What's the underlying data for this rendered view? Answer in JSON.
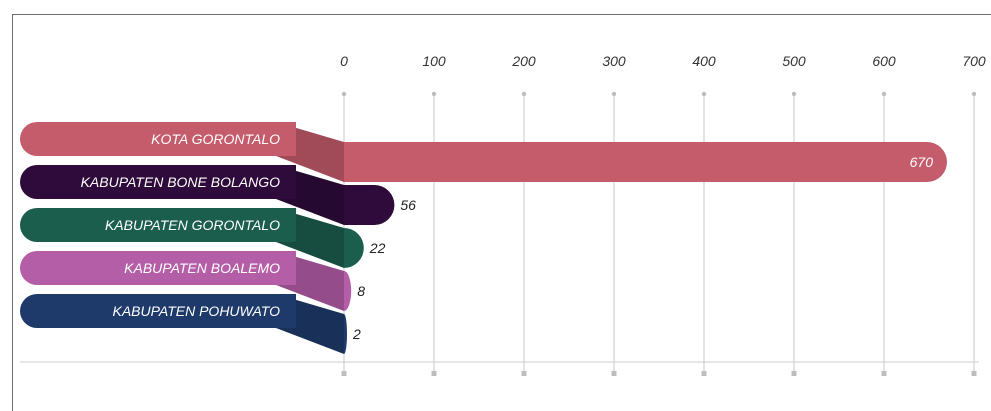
{
  "chart_data": {
    "type": "bar",
    "orientation": "horizontal",
    "categories": [
      "KOTA GORONTALO",
      "KABUPATEN BONE BOLANGO",
      "KABUPATEN GORONTALO",
      "KABUPATEN BOALEMO",
      "KABUPATEN POHUWATO"
    ],
    "values": [
      670,
      56,
      22,
      8,
      2
    ],
    "value_labels": [
      "670",
      "56",
      "22",
      "8",
      "2"
    ],
    "colors": [
      "#c45c6b",
      "#2e0b3b",
      "#1b5e4e",
      "#b55ea8",
      "#1e3a6b"
    ],
    "xlim": [
      0,
      700
    ],
    "xticks": [
      "0",
      "100",
      "200",
      "300",
      "400",
      "500",
      "600",
      "700"
    ],
    "xtick_values": [
      0,
      100,
      200,
      300,
      400,
      500,
      600,
      700
    ],
    "grid": true,
    "legend": "none",
    "title": "",
    "xlabel": "",
    "ylabel": ""
  }
}
